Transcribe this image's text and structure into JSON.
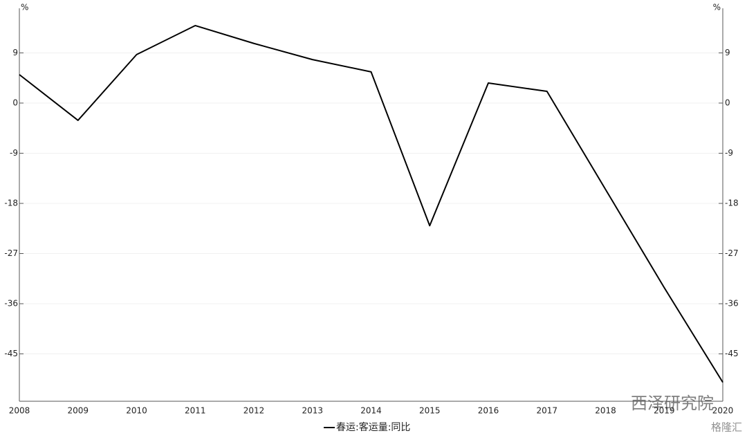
{
  "chart_data": {
    "type": "line",
    "y_unit": "%",
    "y2_unit": "%",
    "categories": [
      "2008",
      "2009",
      "2010",
      "2011",
      "2012",
      "2013",
      "2014",
      "2015",
      "2016",
      "2017",
      "2018",
      "2019",
      "2020"
    ],
    "series": [
      {
        "name": "春运:客运量:同比",
        "color": "#000000",
        "values": [
          5.1,
          -3.1,
          8.7,
          13.9,
          10.7,
          7.8,
          5.6,
          -22.0,
          3.6,
          2.1,
          -15.5,
          -33.1,
          -50.1
        ]
      }
    ],
    "ylim": [
      -53.5,
      17
    ],
    "yticks": [
      -45,
      -36,
      -27,
      -18,
      -9,
      0,
      9
    ],
    "y2lim": [
      -53.5,
      17
    ],
    "y2ticks": [
      -45,
      -36,
      -27,
      -18,
      -9,
      0,
      9
    ],
    "grid": true,
    "legend": "bottom"
  },
  "watermark": {
    "account": "西泽研究院",
    "source": "格隆汇"
  }
}
